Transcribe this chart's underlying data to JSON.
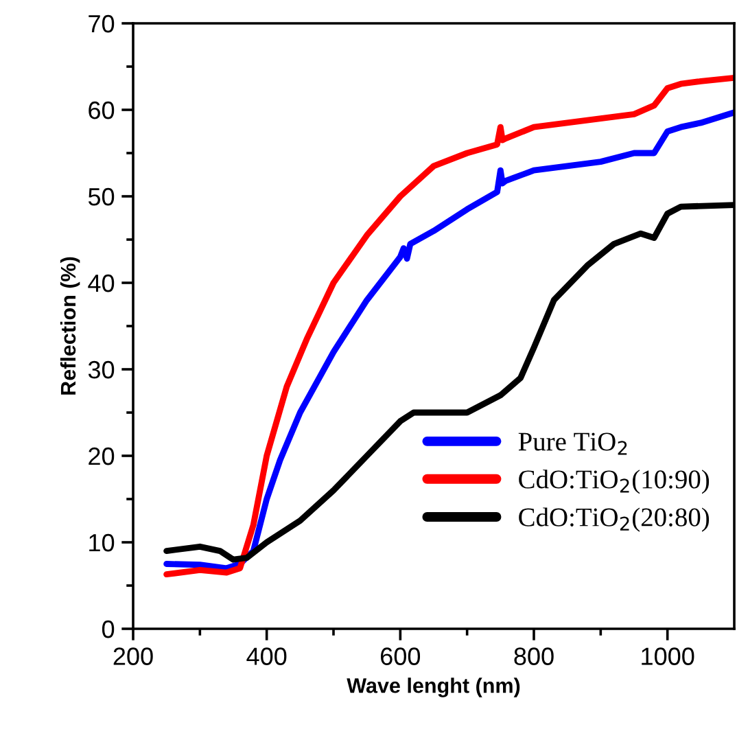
{
  "chart_data": {
    "type": "line",
    "xlabel": "Wave lenght (nm)",
    "ylabel": "Reflection (%)",
    "xlim": [
      200,
      1100
    ],
    "ylim": [
      0,
      70
    ],
    "xticks": [
      200,
      {
        "value": 300,
        "label": null
      },
      400,
      {
        "value": 500,
        "label": null
      },
      600,
      {
        "value": 700,
        "label": null
      },
      800,
      {
        "value": 900,
        "label": null
      },
      1000
    ],
    "yticks": [
      0,
      {
        "value": 5,
        "label": null
      },
      10,
      {
        "value": 15,
        "label": null
      },
      20,
      {
        "value": 25,
        "label": null
      },
      30,
      {
        "value": 35,
        "label": null
      },
      40,
      {
        "value": 45,
        "label": null
      },
      50,
      {
        "value": 55,
        "label": null
      },
      60,
      {
        "value": 65,
        "label": null
      },
      70
    ],
    "grid": false,
    "legend": "lower right",
    "marker": "none",
    "line_style": "solid",
    "series": [
      {
        "name": "Pure TiO$_{2}$",
        "color": "#0000ff",
        "x": [
          250,
          300,
          340,
          360,
          380,
          400,
          420,
          450,
          500,
          550,
          600,
          605,
          610,
          615,
          650,
          700,
          745,
          750,
          753,
          758,
          800,
          850,
          900,
          950,
          980,
          1000,
          1020,
          1050,
          1100
        ],
        "values": [
          7.5,
          7.4,
          7,
          7.5,
          9,
          15,
          19.5,
          25,
          32,
          38,
          43,
          44,
          42.8,
          44.5,
          46,
          48.5,
          50.5,
          53,
          51.5,
          51.8,
          53,
          53.5,
          54,
          55,
          55,
          57.5,
          58,
          58.5,
          59.7
        ]
      },
      {
        "name": "CdO:TiO$_{2}$(10:90)",
        "color": "#ff0000",
        "x": [
          250,
          300,
          340,
          360,
          380,
          400,
          430,
          460,
          500,
          550,
          600,
          650,
          700,
          745,
          750,
          753,
          758,
          800,
          850,
          900,
          950,
          980,
          1000,
          1020,
          1050,
          1100
        ],
        "values": [
          6.3,
          6.8,
          6.5,
          7,
          12,
          20,
          28,
          33.5,
          40,
          45.5,
          50,
          53.5,
          55,
          56,
          58,
          56.5,
          56.7,
          58,
          58.5,
          59,
          59.5,
          60.5,
          62.5,
          63,
          63.3,
          63.7
        ]
      },
      {
        "name": "CdO:TiO$_{2}$(20:80)",
        "color": "#000000",
        "x": [
          250,
          300,
          330,
          350,
          370,
          400,
          450,
          500,
          550,
          600,
          620,
          700,
          750,
          780,
          800,
          830,
          880,
          920,
          960,
          980,
          1000,
          1020,
          1100
        ],
        "values": [
          9,
          9.5,
          9,
          8,
          8.2,
          10,
          12.5,
          16,
          20,
          24,
          25,
          25,
          27,
          29,
          32.5,
          38,
          42,
          44.5,
          45.7,
          45.2,
          48,
          48.8,
          49
        ]
      }
    ]
  }
}
